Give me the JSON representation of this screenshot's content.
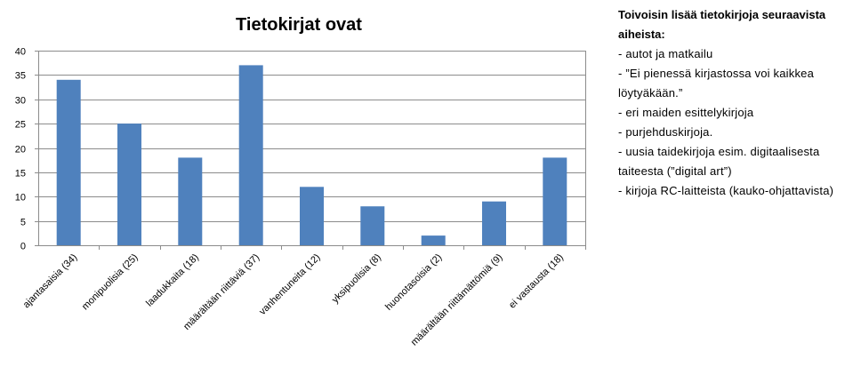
{
  "chart_data": {
    "type": "bar",
    "title": "Tietokirjat ovat",
    "categories": [
      "ajantasaisia (34)",
      "monipuolisia (25)",
      "laadukkaita (18)",
      "määrältään riittäviä (37)",
      "vanhentuneita (12)",
      "yksipuolisia (8)",
      "huonotasoisia (2)",
      "määrältään riittämättömiä (9)",
      "ei vastausta (18)"
    ],
    "values": [
      34,
      25,
      18,
      37,
      12,
      8,
      2,
      9,
      18
    ],
    "ylim": [
      0,
      40
    ],
    "yticks": [
      0,
      5,
      10,
      15,
      20,
      25,
      30,
      35,
      40
    ],
    "xlabel": "",
    "ylabel": "",
    "grid": true,
    "legend": "none",
    "bar_color": "#4f81bd"
  },
  "note": {
    "heading_lines": [
      "Toivoisin lisää tietokirjoja seuraavista",
      "aiheista:"
    ],
    "lines": [
      "- autot ja matkailu",
      "- ”Ei pienessä kirjastossa voi kaikkea",
      "löytyäkään.”",
      "- eri maiden esittelykirjoja",
      "- purjehduskirjoja.",
      "- uusia taidekirjoja esim. digitaalisesta",
      "taiteesta (”digital art”)",
      "- kirjoja RC-laitteista (kauko-ohjattavista)"
    ]
  }
}
